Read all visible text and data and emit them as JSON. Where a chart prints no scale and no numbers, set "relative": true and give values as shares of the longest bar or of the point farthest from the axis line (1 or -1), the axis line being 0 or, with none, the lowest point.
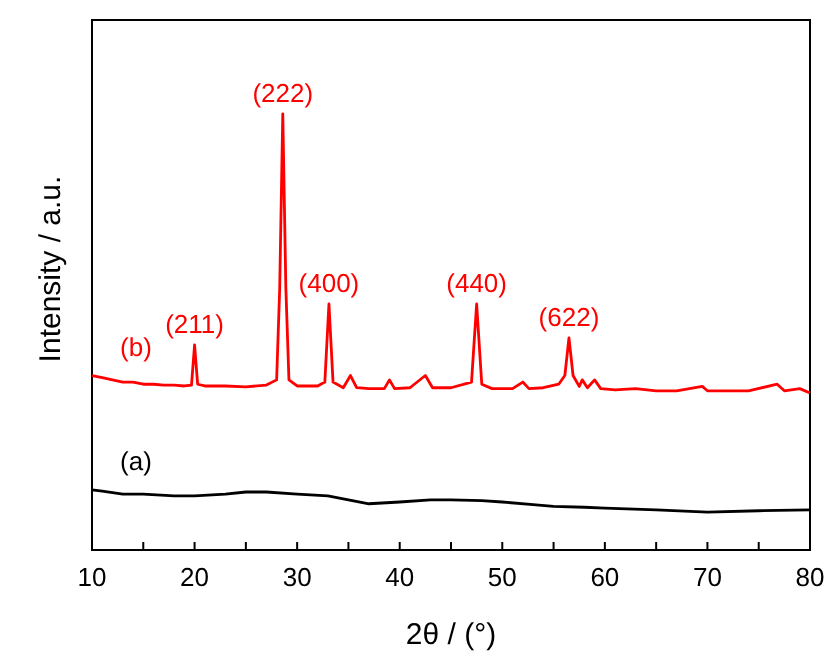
{
  "chart_data": {
    "type": "line",
    "relative": true,
    "xlabel": "2θ / (°)",
    "ylabel": "Intensity / a.u.",
    "xlim": [
      10,
      80
    ],
    "xticks": [
      10,
      {
        "value": 15,
        "label": null
      },
      20,
      {
        "value": 25,
        "label": null
      },
      30,
      {
        "value": 35,
        "label": null
      },
      40,
      {
        "value": 45,
        "label": null
      },
      50,
      {
        "value": 55,
        "label": null
      },
      60,
      {
        "value": 65,
        "label": null
      },
      70,
      {
        "value": 75,
        "label": null
      },
      80
    ],
    "tick_labels": "x",
    "grid": false,
    "legend": false,
    "marker": "none",
    "line_style": "solid",
    "series": [
      {
        "name": "(b)",
        "color": "#ff0000",
        "x": [
          10,
          11,
          12,
          13,
          14,
          15,
          16,
          17,
          18,
          19,
          19.7,
          20.0,
          20.3,
          21,
          23,
          25,
          27,
          28.0,
          28.3,
          28.6,
          28.9,
          29.2,
          30,
          32,
          32.7,
          33.1,
          33.5,
          34.5,
          35.2,
          35.8,
          37,
          38.5,
          39.0,
          39.5,
          41,
          42.5,
          43.2,
          45,
          47,
          47.5,
          48,
          49,
          51,
          52.0,
          52.6,
          54,
          55.5,
          56.1,
          56.5,
          56.9,
          57.5,
          57.8,
          58.3,
          59.0,
          59.6,
          61,
          63,
          65,
          67,
          69.5,
          70,
          72,
          74,
          76.8,
          77.5,
          79,
          80
        ],
        "values": [
          0.4,
          0.395,
          0.39,
          0.385,
          0.385,
          0.38,
          0.38,
          0.378,
          0.378,
          0.376,
          0.378,
          0.47,
          0.38,
          0.376,
          0.376,
          0.374,
          0.378,
          0.39,
          0.6,
          1.0,
          0.6,
          0.39,
          0.376,
          0.376,
          0.385,
          0.564,
          0.385,
          0.372,
          0.4,
          0.372,
          0.37,
          0.37,
          0.39,
          0.37,
          0.372,
          0.4,
          0.372,
          0.372,
          0.385,
          0.564,
          0.38,
          0.37,
          0.37,
          0.385,
          0.37,
          0.372,
          0.38,
          0.4,
          0.486,
          0.4,
          0.375,
          0.39,
          0.372,
          0.39,
          0.37,
          0.367,
          0.37,
          0.365,
          0.365,
          0.375,
          0.365,
          0.365,
          0.365,
          0.38,
          0.365,
          0.37,
          0.36
        ]
      },
      {
        "name": "(a)",
        "color": "#000000",
        "x": [
          10,
          11,
          13,
          15,
          18,
          20,
          23,
          25,
          27,
          30,
          33,
          35,
          37,
          40,
          43,
          45,
          48,
          50,
          53,
          55,
          58,
          60,
          65,
          70,
          75,
          80
        ],
        "values": [
          0.138,
          0.135,
          0.128,
          0.128,
          0.124,
          0.124,
          0.128,
          0.133,
          0.133,
          0.128,
          0.124,
          0.115,
          0.106,
          0.11,
          0.115,
          0.115,
          0.113,
          0.11,
          0.104,
          0.1,
          0.098,
          0.096,
          0.092,
          0.087,
          0.09,
          0.092
        ]
      }
    ],
    "annotations": [
      {
        "text": "(211)",
        "x": 20.0,
        "y": 0.47
      },
      {
        "text": "(222)",
        "x": 28.6,
        "y": 1.0
      },
      {
        "text": "(400)",
        "x": 33.1,
        "y": 0.564
      },
      {
        "text": "(440)",
        "x": 47.5,
        "y": 0.564
      },
      {
        "text": "(622)",
        "x": 56.5,
        "y": 0.486
      }
    ]
  }
}
